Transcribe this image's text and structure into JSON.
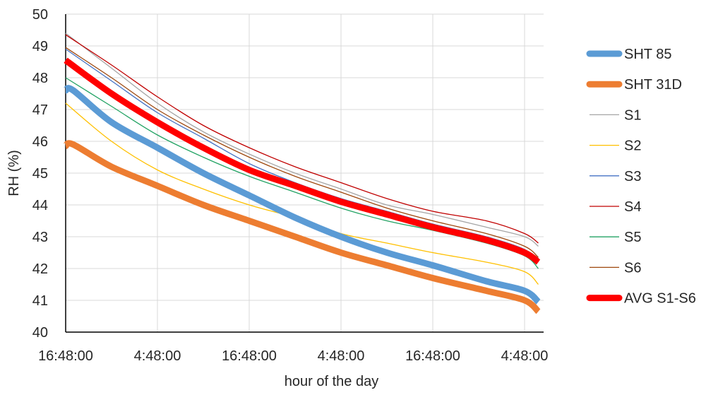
{
  "chart_data": {
    "type": "line",
    "title": "",
    "xlabel": "hour of the day",
    "ylabel": "RH (%)",
    "ylim": [
      40,
      50
    ],
    "y_ticks": [
      "40",
      "41",
      "42",
      "43",
      "44",
      "45",
      "46",
      "47",
      "48",
      "49",
      "50"
    ],
    "x_tick_labels": [
      "16:48:00",
      "4:48:00",
      "16:48:00",
      "4:48:00",
      "16:48:00",
      "4:48:00"
    ],
    "x_unit": "hours elapsed since first tick (16:48:00)",
    "xlim": [
      0,
      62.5
    ],
    "grid": true,
    "legend_position": "right",
    "series": [
      {
        "name": "SHT 85",
        "color": "#5b9bd5",
        "x": [
          0,
          1,
          6,
          12,
          18,
          24,
          30,
          36,
          42,
          48,
          55,
          60,
          61.8
        ],
        "values": [
          47.6,
          47.6,
          46.6,
          45.8,
          45.0,
          44.3,
          43.6,
          43.0,
          42.5,
          42.1,
          41.6,
          41.3,
          40.95
        ]
      },
      {
        "name": "SHT 31D",
        "color": "#ed7d31",
        "x": [
          0,
          1,
          6,
          12,
          18,
          24,
          30,
          36,
          42,
          48,
          55,
          60,
          61.8
        ],
        "values": [
          45.85,
          45.9,
          45.2,
          44.6,
          44.0,
          43.5,
          43.0,
          42.5,
          42.1,
          41.7,
          41.3,
          41.0,
          40.65
        ]
      },
      {
        "name": "S1",
        "color": "#a5a5a5",
        "x": [
          0,
          6,
          12,
          18,
          24,
          30,
          36,
          42,
          48,
          55,
          60,
          61.8
        ],
        "values": [
          49.4,
          48.3,
          47.2,
          46.3,
          45.6,
          45.0,
          44.5,
          44.0,
          43.7,
          43.3,
          43.0,
          42.7
        ]
      },
      {
        "name": "S2",
        "color": "#ffc000",
        "x": [
          0,
          6,
          12,
          18,
          24,
          30,
          36,
          42,
          48,
          55,
          60,
          61.8
        ],
        "values": [
          47.2,
          46.0,
          45.1,
          44.5,
          44.0,
          43.6,
          43.1,
          42.8,
          42.5,
          42.2,
          41.9,
          41.5
        ]
      },
      {
        "name": "S3",
        "color": "#4472c4",
        "x": [
          0,
          6,
          12,
          18,
          24,
          30,
          36,
          42,
          48,
          55,
          60,
          61.8
        ],
        "values": [
          48.9,
          47.9,
          46.9,
          46.1,
          45.3,
          44.7,
          44.2,
          43.8,
          43.4,
          43.0,
          42.6,
          42.2
        ]
      },
      {
        "name": "S4",
        "color": "#c00000",
        "x": [
          0,
          6,
          12,
          18,
          24,
          30,
          36,
          42,
          48,
          55,
          60,
          61.8
        ],
        "values": [
          49.35,
          48.4,
          47.4,
          46.5,
          45.8,
          45.2,
          44.7,
          44.2,
          43.8,
          43.5,
          43.1,
          42.8
        ]
      },
      {
        "name": "S5",
        "color": "#23a364",
        "x": [
          0,
          6,
          12,
          18,
          24,
          30,
          36,
          42,
          48,
          55,
          60,
          61.8
        ],
        "values": [
          48.0,
          47.1,
          46.2,
          45.5,
          44.9,
          44.4,
          43.9,
          43.5,
          43.2,
          42.8,
          42.4,
          42.0
        ]
      },
      {
        "name": "S6",
        "color": "#9e480e",
        "x": [
          0,
          6,
          12,
          18,
          24,
          30,
          36,
          42,
          48,
          55,
          60,
          61.8
        ],
        "values": [
          48.95,
          48.0,
          47.0,
          46.2,
          45.5,
          44.9,
          44.4,
          43.9,
          43.5,
          43.1,
          42.7,
          42.35
        ]
      },
      {
        "name": "AVG S1-S6",
        "color": "#ff0000",
        "x": [
          0,
          6,
          12,
          18,
          24,
          30,
          36,
          42,
          48,
          55,
          60,
          61.8
        ],
        "values": [
          48.55,
          47.5,
          46.6,
          45.8,
          45.1,
          44.6,
          44.1,
          43.7,
          43.3,
          42.9,
          42.5,
          42.2
        ]
      }
    ]
  },
  "legend_order": [
    "SHT 85",
    "SHT 31D",
    "S1",
    "S2",
    "S3",
    "S4",
    "S5",
    "S6",
    "AVG S1-S6"
  ]
}
